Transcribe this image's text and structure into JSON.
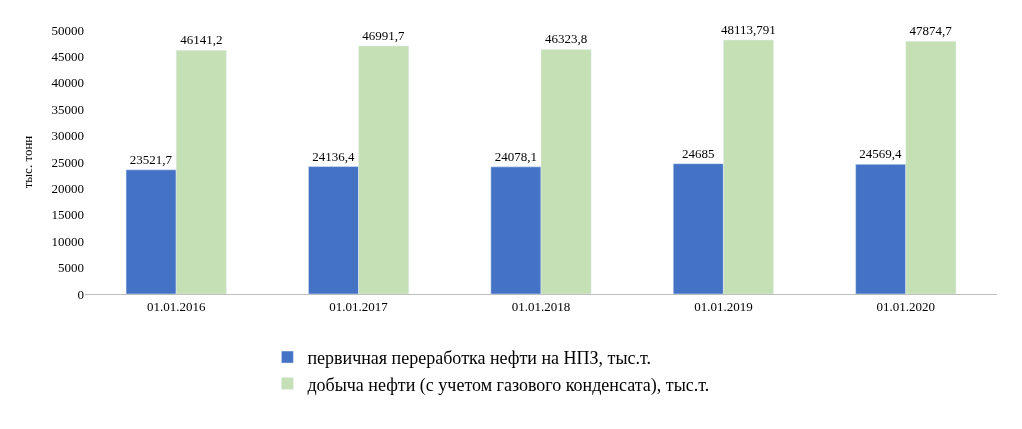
{
  "chart_data": {
    "type": "bar",
    "ylabel": "тыс. тонн",
    "categories": [
      "01.01.2016",
      "01.01.2017",
      "01.01.2018",
      "01.01.2019",
      "01.01.2020"
    ],
    "series": [
      {
        "name": "первичная переработка нефти на НПЗ, тыс.т.",
        "color": "#4472c4",
        "values": [
          23521.7,
          24136.4,
          24078.1,
          24685,
          24569.4
        ],
        "value_labels": [
          "23521,7",
          "24136,4",
          "24078,1",
          "24685",
          "24569,4"
        ]
      },
      {
        "name": "добыча нефти (с учетом газового конденсата), тыс.т.",
        "color": "#c5e0b4",
        "values": [
          46141.2,
          46991.7,
          46323.8,
          48113.791,
          47874.7
        ],
        "value_labels": [
          "46141,2",
          "46991,7",
          "46323,8",
          "48113,791",
          "47874,7"
        ]
      }
    ],
    "ylim": [
      0,
      50000
    ],
    "yticks": [
      0,
      5000,
      10000,
      15000,
      20000,
      25000,
      30000,
      35000,
      40000,
      45000,
      50000
    ],
    "legend": "bottom"
  }
}
